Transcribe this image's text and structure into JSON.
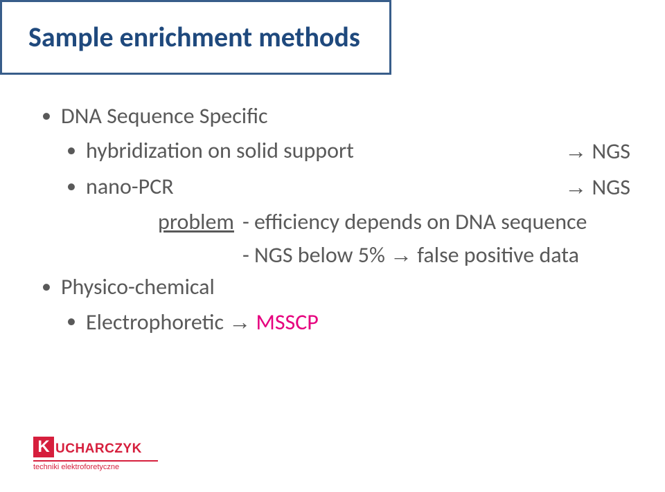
{
  "colors": {
    "title_border": "#385d8a",
    "title_text": "#1f497d",
    "body_text": "#595959",
    "accent": "#e6007e",
    "logo_red": "#d61f3d",
    "background": "#ffffff"
  },
  "fonts": {
    "title_size_pt": 30,
    "body_size_pt": 24
  },
  "title": "Sample enrichment methods",
  "bullets": {
    "b1": "DNA Sequence Specific",
    "b2_label": "hybridization on solid support",
    "b2_val_arrow": "→",
    "b2_val": " NGS",
    "b3_label": "nano-PCR",
    "b3_val_arrow": "→",
    "b3_val": " NGS",
    "problem_label": "problem",
    "problem_line1": "- efficiency depends on DNA sequence",
    "problem_line2_a": "- NGS below 5% ",
    "problem_line2_arrow": "→",
    "problem_line2_b": " false positive data",
    "b4": "Physico-chemical",
    "b5_label": "Electrophoretic ",
    "b5_val_arrow": "→",
    "b5_val": " MSSCP"
  },
  "logo": {
    "k": "K",
    "rest": "UCHARCZYK",
    "sub": "techniki elektroforetyczne"
  }
}
